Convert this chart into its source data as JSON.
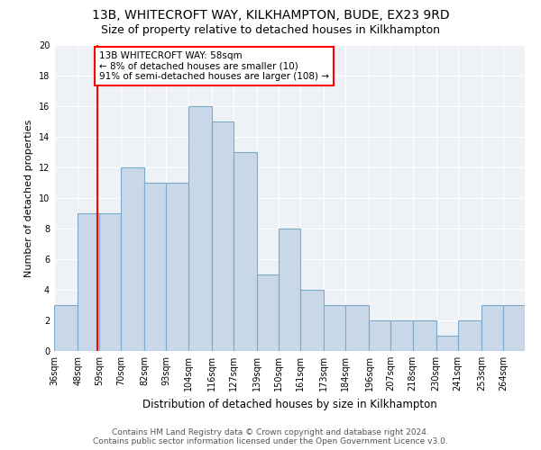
{
  "title1": "13B, WHITECROFT WAY, KILKHAMPTON, BUDE, EX23 9RD",
  "title2": "Size of property relative to detached houses in Kilkhampton",
  "xlabel": "Distribution of detached houses by size in Kilkhampton",
  "ylabel": "Number of detached properties",
  "footer1": "Contains HM Land Registry data © Crown copyright and database right 2024.",
  "footer2": "Contains public sector information licensed under the Open Government Licence v3.0.",
  "annotation_line1": "13B WHITECROFT WAY: 58sqm",
  "annotation_line2": "← 8% of detached houses are smaller (10)",
  "annotation_line3": "91% of semi-detached houses are larger (108) →",
  "bar_edges": [
    36,
    48,
    59,
    70,
    82,
    93,
    104,
    116,
    127,
    139,
    150,
    161,
    173,
    184,
    196,
    207,
    218,
    230,
    241,
    253,
    264
  ],
  "bar_heights": [
    3,
    9,
    9,
    12,
    11,
    11,
    16,
    15,
    13,
    5,
    8,
    4,
    3,
    3,
    2,
    2,
    2,
    1,
    2,
    3,
    3
  ],
  "bar_color": "#c8d8e8",
  "bar_edge_color": "#7aaac8",
  "red_line_x": 58,
  "ylim": [
    0,
    20
  ],
  "yticks": [
    0,
    2,
    4,
    6,
    8,
    10,
    12,
    14,
    16,
    18,
    20
  ],
  "bg_color": "#eef2f7",
  "red_line_color": "red",
  "title1_fontsize": 10,
  "title2_fontsize": 9,
  "xlabel_fontsize": 8.5,
  "ylabel_fontsize": 8,
  "tick_fontsize": 7,
  "footer_fontsize": 6.5,
  "annotation_fontsize": 7.5
}
